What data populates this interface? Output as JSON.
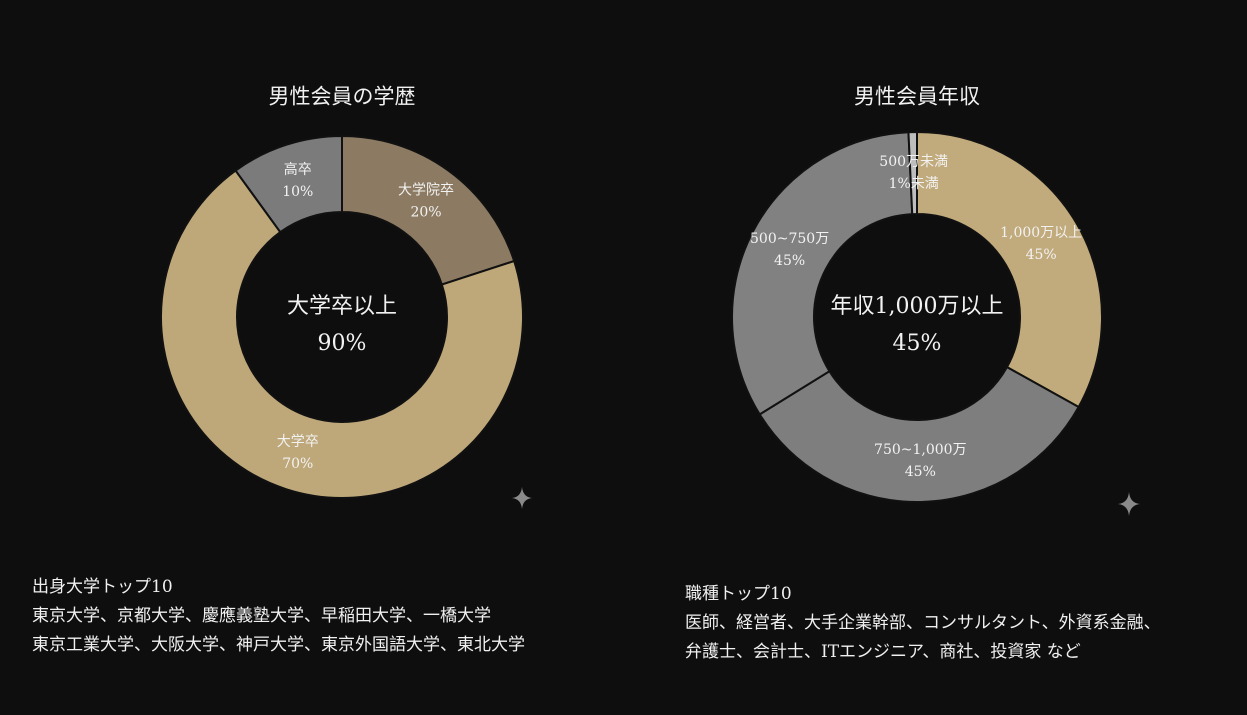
{
  "chart_data": [
    {
      "type": "pie",
      "title": "男性会員の学歴",
      "center_text": [
        "大学卒以上",
        "90%"
      ],
      "categories": [
        "大学院卒",
        "大学卒",
        "高卒"
      ],
      "values": [
        20,
        70,
        10
      ],
      "value_labels": [
        "20%",
        "70%",
        "10%"
      ],
      "colors": [
        "#8c7b62",
        "#bea87a",
        "#7b7b7b"
      ]
    },
    {
      "type": "pie",
      "title": "男性会員年収",
      "center_text": [
        "年収1,000万以上",
        "45%"
      ],
      "categories": [
        "1,000万以上",
        "750~1,000万",
        "500~750万",
        "500万未満"
      ],
      "values": [
        45,
        45,
        45,
        1
      ],
      "value_labels": [
        "45%",
        "45%",
        "45%",
        "1%未満"
      ],
      "colors": [
        "#c1aa7b",
        "#7e7e7e",
        "#818181",
        "#bdbdbd"
      ]
    }
  ],
  "notes": [
    {
      "heading": "出身大学トップ10",
      "lines": [
        "東京大学、京都大学、慶應義塾大学、早稲田大学、一橋大学",
        "東京工業大学、大阪大学、神戸大学、東京外国語大学、東北大学"
      ]
    },
    {
      "heading": "職種トップ10",
      "lines": [
        "医師、経営者、大手企業幹部、コンサルタント、外資系金融、",
        "弁護士、会計士、ITエンジニア、商社、投資家 など"
      ]
    }
  ]
}
